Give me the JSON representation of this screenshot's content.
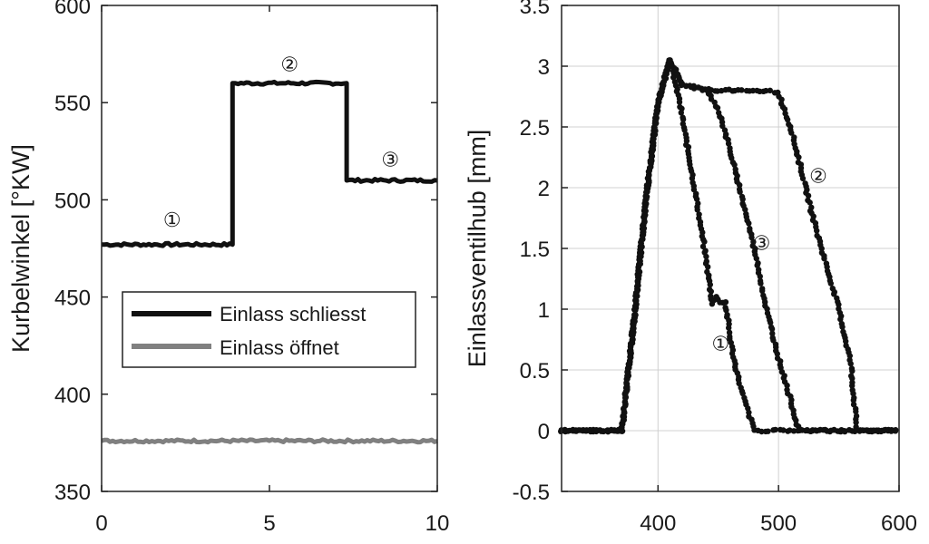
{
  "chart_data": [
    {
      "type": "line",
      "ylabel": "Kurbelwinkel [°KW]",
      "xlabel": "",
      "xlim": [
        0,
        10
      ],
      "ylim": [
        350,
        600
      ],
      "xticks": [
        "0",
        "5",
        "10"
      ],
      "yticks": [
        "350",
        "400",
        "450",
        "500",
        "550",
        "600"
      ],
      "grid": false,
      "legend_position": "lower-left",
      "series": [
        {
          "name": "Einlass schliesst",
          "color": "#111111",
          "x": [
            0,
            3.9,
            3.9,
            7.3,
            7.3,
            10
          ],
          "y": [
            477,
            477,
            560,
            560,
            510,
            510
          ]
        },
        {
          "name": "Einlass öffnet",
          "color": "#808080",
          "x": [
            0,
            10
          ],
          "y": [
            376,
            376
          ]
        }
      ],
      "annotations": [
        {
          "text": "①",
          "x": 2.1,
          "y": 490
        },
        {
          "text": "②",
          "x": 5.6,
          "y": 570
        },
        {
          "text": "③",
          "x": 8.6,
          "y": 521
        }
      ]
    },
    {
      "type": "scatter",
      "ylabel": "Einlassventilhub [mm]",
      "xlabel": "",
      "xlim": [
        320,
        600
      ],
      "ylim": [
        -0.5,
        3.5
      ],
      "xticks": [
        "400",
        "500",
        "600"
      ],
      "yticks": [
        "-0.5",
        "0",
        "0.5",
        "1",
        "1.5",
        "2",
        "2.5",
        "3",
        "3.5"
      ],
      "grid": true,
      "series": [
        {
          "label": "①",
          "color": "#111111",
          "x": [
            320,
            370,
            380,
            390,
            400,
            410,
            418,
            425,
            432,
            440,
            445,
            448,
            452,
            456,
            460,
            465,
            470,
            475,
            480,
            600
          ],
          "y": [
            0,
            0,
            0.9,
            1.9,
            2.7,
            3.05,
            2.7,
            2.3,
            1.9,
            1.4,
            1.05,
            1.1,
            1.05,
            1.05,
            0.75,
            0.5,
            0.3,
            0.15,
            0,
            0
          ]
        },
        {
          "label": "②",
          "color": "#111111",
          "x": [
            320,
            370,
            380,
            390,
            400,
            410,
            420,
            430,
            450,
            470,
            490,
            500,
            510,
            520,
            530,
            540,
            550,
            560,
            565,
            600
          ],
          "y": [
            0,
            0,
            0.9,
            1.9,
            2.7,
            3.05,
            2.85,
            2.82,
            2.8,
            2.8,
            2.8,
            2.78,
            2.5,
            2.1,
            1.7,
            1.35,
            1.0,
            0.55,
            0,
            0
          ]
        },
        {
          "label": "③",
          "color": "#111111",
          "x": [
            320,
            370,
            380,
            390,
            400,
            410,
            420,
            430,
            440,
            450,
            460,
            470,
            480,
            490,
            500,
            510,
            517,
            600
          ],
          "y": [
            0,
            0,
            0.9,
            1.9,
            2.7,
            3.05,
            2.85,
            2.83,
            2.8,
            2.65,
            2.3,
            1.9,
            1.5,
            1.0,
            0.6,
            0.25,
            0,
            0
          ]
        }
      ],
      "annotations": [
        {
          "text": "②",
          "x": 533,
          "y": 2.1
        },
        {
          "text": "③",
          "x": 486,
          "y": 1.55
        },
        {
          "text": "①",
          "x": 452,
          "y": 0.72
        }
      ]
    }
  ]
}
